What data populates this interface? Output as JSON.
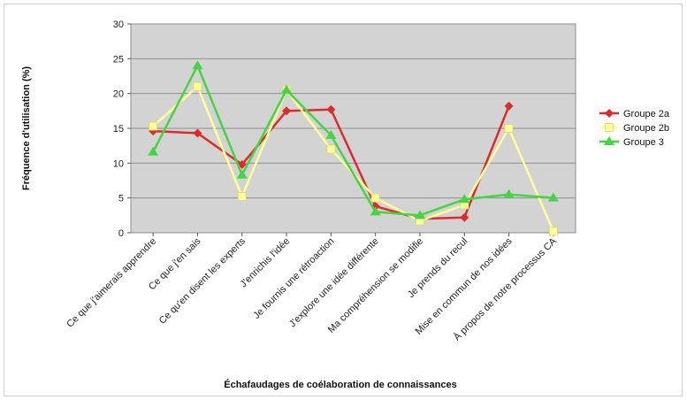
{
  "chart_data": {
    "type": "line",
    "title": "",
    "xlabel": "Échafaudages de coélaboration de connaissances",
    "ylabel": "Fréquence d'utilisation (%)",
    "ylim": [
      0,
      30
    ],
    "yticks": [
      0,
      5,
      10,
      15,
      20,
      25,
      30
    ],
    "grid": true,
    "legend_position": "right",
    "categories": [
      "Ce que j'aimerais apprendre",
      "Ce que j'en sais",
      "Ce qu'en disent les experts",
      "J'enrichis l'idée",
      "Je fournis une rétroaction",
      "J'explore une idée différente",
      "Ma compréhension se modifie",
      "Je prends du recul",
      "Mise en commun de nos idées",
      "À propos de notre processus CA"
    ],
    "series": [
      {
        "name": "Groupe 2a",
        "color": "#dd2b2b",
        "marker": "diamond",
        "values": [
          14.6,
          14.3,
          9.8,
          17.5,
          17.7,
          3.8,
          2.0,
          2.2,
          18.2,
          null
        ]
      },
      {
        "name": "Groupe 2b",
        "color": "#ffff99",
        "marker": "square",
        "values": [
          15.3,
          21.0,
          5.2,
          20.5,
          12.0,
          5.0,
          1.7,
          4.0,
          15.0,
          0.2
        ]
      },
      {
        "name": "Groupe 3",
        "color": "#44d444",
        "marker": "triangle",
        "values": [
          11.6,
          24.0,
          8.3,
          20.5,
          14.0,
          3.0,
          2.5,
          4.8,
          5.5,
          5.0
        ]
      }
    ],
    "plot_background": "#d3d3d3"
  }
}
